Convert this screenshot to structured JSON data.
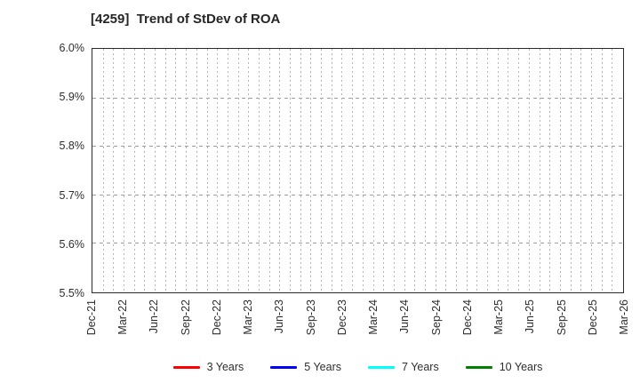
{
  "title": "[4259]  Trend of StDev of ROA",
  "chart_data": {
    "type": "line",
    "title": "[4259]  Trend of StDev of ROA",
    "xlabel": "",
    "ylabel": "",
    "x_tick_labels": [
      "Dec-21",
      "Mar-22",
      "Jun-22",
      "Sep-22",
      "Dec-22",
      "Mar-23",
      "Jun-23",
      "Sep-23",
      "Dec-23",
      "Mar-24",
      "Jun-24",
      "Sep-24",
      "Dec-24",
      "Mar-25",
      "Jun-25",
      "Sep-25",
      "Dec-25",
      "Mar-26"
    ],
    "y_tick_labels": [
      "6.0%",
      "5.9%",
      "5.8%",
      "5.7%",
      "5.6%",
      "5.5%"
    ],
    "ylim": [
      5.5,
      6.0
    ],
    "y_unit": "%",
    "grid": true,
    "gridlines_per_x_interval": 3,
    "legend_position": "bottom",
    "no_data_rendered": true,
    "series": [
      {
        "name": "3 Years",
        "color": "#ff0000",
        "values": []
      },
      {
        "name": "5 Years",
        "color": "#0000ff",
        "values": []
      },
      {
        "name": "7 Years",
        "color": "#00ffff",
        "values": []
      },
      {
        "name": "10 Years",
        "color": "#008000",
        "values": []
      }
    ]
  },
  "colors": {
    "background": "#ffffff",
    "plot_border": "#2b2b2b",
    "grid_vertical": "#b4b4b4",
    "grid_horizontal": "#9f9f9f",
    "text": "#2e2e2e"
  }
}
